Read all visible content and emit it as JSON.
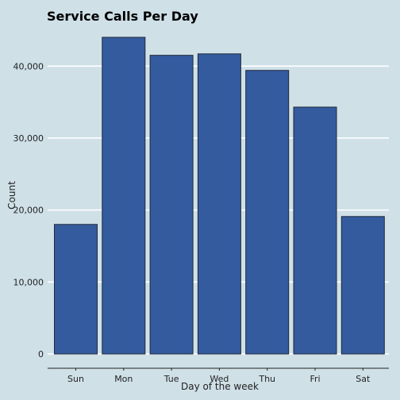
{
  "chart_data": {
    "type": "bar",
    "title": "Service Calls Per Day",
    "xlabel": "Day of the week",
    "ylabel": "Count",
    "categories": [
      "Sun",
      "Mon",
      "Tue",
      "Wed",
      "Thu",
      "Fri",
      "Sat"
    ],
    "values": [
      18000,
      44000,
      41500,
      41700,
      39400,
      34300,
      19100
    ],
    "ylim": [
      0,
      44000
    ],
    "yticks": [
      0,
      10000,
      20000,
      30000,
      40000
    ],
    "ytick_labels": [
      "0",
      "10,000",
      "20,000",
      "30,000",
      "40,000"
    ],
    "grid": true,
    "bar_color": "#345b9e",
    "background_color": "#cfe0e7",
    "grid_color": "#ffffff"
  }
}
